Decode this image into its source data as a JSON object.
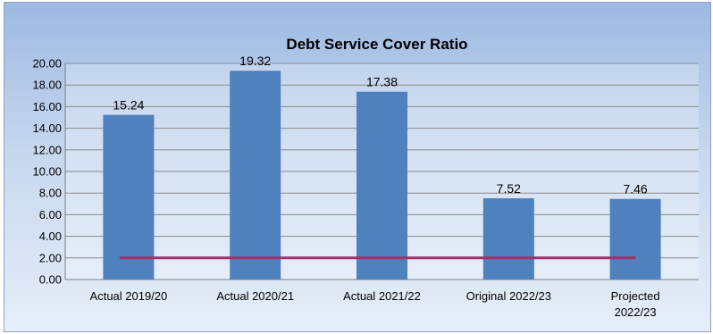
{
  "chart_data": {
    "type": "bar",
    "title": "Debt Service Cover Ratio",
    "xlabel": "",
    "ylabel": "",
    "categories": [
      [
        "Actual 2019/20"
      ],
      [
        "Actual 2020/21"
      ],
      [
        "Actual 2021/22"
      ],
      [
        "Original 2022/23"
      ],
      [
        "Projected",
        "2022/23"
      ]
    ],
    "values": [
      15.24,
      19.32,
      17.38,
      7.52,
      7.46
    ],
    "value_labels": [
      "15.24",
      "19.32",
      "17.38",
      "7.52",
      "7.46"
    ],
    "ylim": [
      0,
      20
    ],
    "yticks": [
      "0.00",
      "2.00",
      "4.00",
      "6.00",
      "8.00",
      "10.00",
      "12.00",
      "14.00",
      "16.00",
      "18.00",
      "20.00"
    ],
    "threshold_line": {
      "value": 2.0,
      "color": "#a0306a"
    },
    "bar_color": "#4f81bd",
    "grid": true,
    "legend": "none"
  }
}
